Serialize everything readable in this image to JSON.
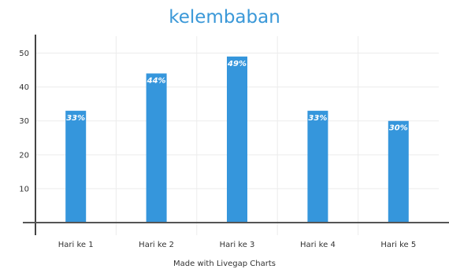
{
  "chart_data": {
    "type": "bar",
    "title": "kelembaban",
    "categories": [
      "Hari ke 1",
      "Hari ke 2",
      "Hari ke 3",
      "Hari ke 4",
      "Hari ke 5"
    ],
    "values": [
      33,
      44,
      49,
      33,
      30
    ],
    "data_labels": [
      "33%",
      "44%",
      "49%",
      "33%",
      "30%"
    ],
    "y_ticks": [
      10,
      20,
      30,
      40,
      50
    ],
    "ylim": [
      0,
      55
    ],
    "xlabel": "",
    "ylabel": "",
    "grid": true,
    "legend": "none",
    "bar_color": "#3596dc",
    "title_color": "#3a98d8"
  },
  "footer": {
    "text": "Made with Livegap Charts"
  }
}
